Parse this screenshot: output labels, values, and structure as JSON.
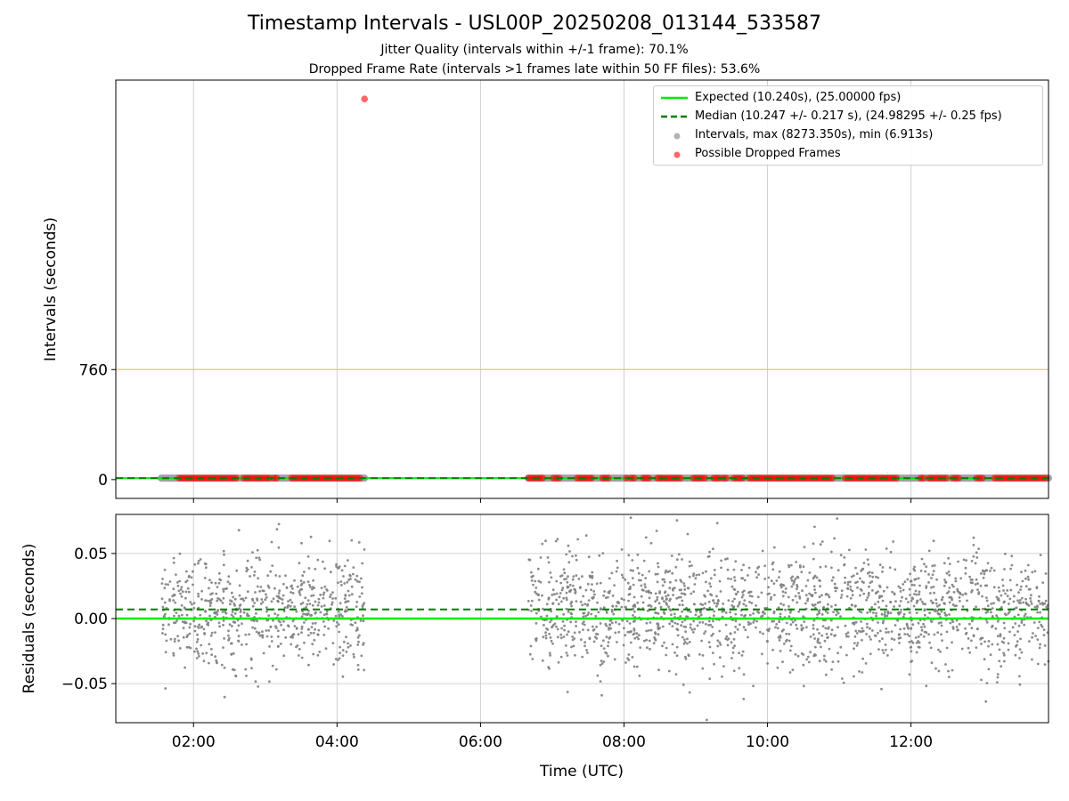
{
  "figure": {
    "title": "Timestamp Intervals - USL00P_20250208_013144_533587",
    "subtitle_jitter": "Jitter Quality (intervals within +/-1 frame): 70.1%",
    "subtitle_dropped": "Dropped Frame Rate (intervals >1 frames late within 50 FF files): 53.6%"
  },
  "colors": {
    "expected": "#00ee00",
    "median": "#007f00",
    "intervals": "#808080",
    "dropped": "#ff0000",
    "threshold": "#f5c04a"
  },
  "chart_data": [
    {
      "type": "scatter",
      "name": "intervals",
      "xlabel": "",
      "ylabel": "Intervals (seconds)",
      "xlim": [
        "00:55",
        "13:55"
      ],
      "ylim": [
        -130,
        2760
      ],
      "y_ticks": [
        0,
        760
      ],
      "y_tick_labels": [
        "0",
        "760"
      ],
      "grid": true,
      "legend_position": "top-right",
      "reference_lines": [
        {
          "name": "expected",
          "value": 10.24
        },
        {
          "name": "median",
          "value": 10.247
        },
        {
          "name": "threshold",
          "value": 760
        }
      ],
      "legend": [
        {
          "label": "Expected (10.240s), (25.00000 fps)",
          "marker": "solid-line",
          "color": "#00ee00"
        },
        {
          "label": "Median (10.247 +/- 0.217 s), (24.98295 +/- 0.25 fps)",
          "marker": "dashed-line",
          "color": "#007f00"
        },
        {
          "label": "Intervals, max (8273.350s), min (6.913s)",
          "marker": "dot",
          "color": "#808080"
        },
        {
          "label": "Possible Dropped Frames",
          "marker": "dot",
          "color": "#ff0000"
        }
      ],
      "series": [
        {
          "name": "Intervals",
          "segments": [
            [
              "01:33",
              "04:23"
            ],
            [
              "06:40",
              "13:55"
            ]
          ],
          "approx_value": 10.24
        },
        {
          "name": "Possible Dropped Frames",
          "segments": [
            [
              "01:48",
              "02:36"
            ],
            [
              "02:42",
              "03:05"
            ],
            [
              "03:07",
              "03:10"
            ],
            [
              "03:22",
              "04:20"
            ],
            [
              "06:40",
              "06:52"
            ],
            [
              "07:01",
              "07:08"
            ],
            [
              "07:21",
              "07:35"
            ],
            [
              "07:42",
              "07:48"
            ],
            [
              "08:02",
              "08:04"
            ],
            [
              "08:06",
              "08:09"
            ],
            [
              "08:16",
              "08:22"
            ],
            [
              "08:28",
              "08:48"
            ],
            [
              "08:58",
              "09:08"
            ],
            [
              "09:15",
              "09:20"
            ],
            [
              "09:23",
              "09:27"
            ],
            [
              "09:32",
              "09:40"
            ],
            [
              "09:45",
              "10:55"
            ],
            [
              "11:05",
              "11:50"
            ],
            [
              "12:08",
              "12:12"
            ],
            [
              "12:15",
              "12:30"
            ],
            [
              "12:35",
              "12:42"
            ],
            [
              "12:55",
              "13:02"
            ],
            [
              "13:10",
              "13:55"
            ]
          ],
          "approx_value": 10.5,
          "outliers": [
            {
              "x": "04:23",
              "y": 2630
            }
          ]
        }
      ]
    },
    {
      "type": "scatter",
      "name": "residuals",
      "xlabel": "Time (UTC)",
      "ylabel": "Residuals (seconds)",
      "xlim": [
        "00:55",
        "13:55"
      ],
      "ylim": [
        -0.08,
        0.08
      ],
      "x_ticks": [
        "02:00",
        "04:00",
        "06:00",
        "08:00",
        "10:00",
        "12:00"
      ],
      "y_ticks": [
        -0.05,
        0.0,
        0.05
      ],
      "y_tick_labels": [
        "−0.05",
        "0.00",
        "0.05"
      ],
      "grid": true,
      "reference_lines": [
        {
          "name": "expected",
          "value": 0.0
        },
        {
          "name": "median",
          "value": 0.007
        }
      ],
      "series": [
        {
          "name": "Residuals",
          "segments": [
            [
              "01:33",
              "04:23"
            ],
            [
              "06:40",
              "13:55"
            ]
          ],
          "center": 0.007,
          "spread": 0.022,
          "point_count": 2400
        }
      ]
    }
  ]
}
